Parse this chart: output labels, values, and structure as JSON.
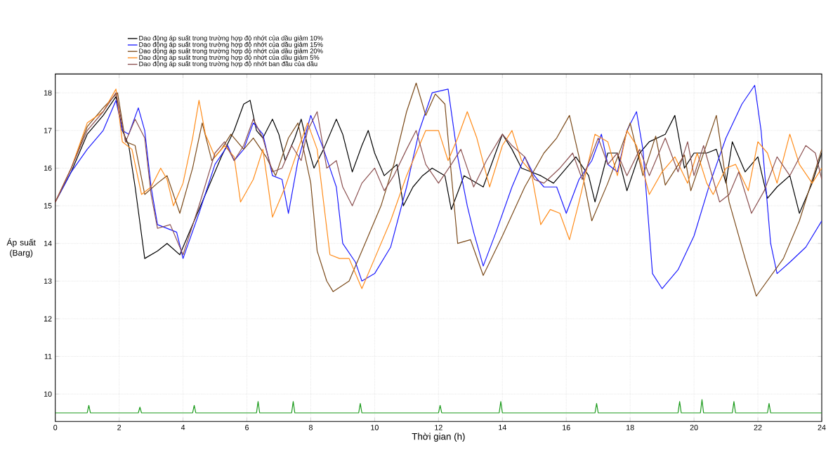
{
  "chart_data": {
    "type": "line",
    "xlabel": "Thời gian (h)",
    "ylabel": "Áp suất (Barg)",
    "xlim": [
      0,
      24
    ],
    "ylim": [
      9.27,
      18.5
    ],
    "xticks": [
      0,
      2,
      4,
      6,
      8,
      10,
      12,
      14,
      16,
      18,
      20,
      22,
      24
    ],
    "yticks": [
      10,
      11,
      12,
      13,
      14,
      15,
      16,
      17,
      18
    ],
    "grid": true,
    "legend": "top",
    "marker": "none",
    "line_style": "solid",
    "series": [
      {
        "name": "Dao động áp suất trong trường hợp độ nhớt của dầu giảm 10%",
        "color": "#000000",
        "x": [
          0,
          0.5,
          1,
          1.5,
          1.9,
          2.1,
          2.3,
          2.5,
          2.8,
          3.2,
          3.5,
          3.9,
          4.2,
          4.7,
          5.2,
          5.6,
          5.9,
          6.1,
          6.3,
          6.5,
          6.8,
          7,
          7.2,
          7.5,
          7.7,
          7.9,
          8.1,
          8.4,
          8.8,
          9,
          9.3,
          9.6,
          9.8,
          10,
          10.3,
          10.7,
          10.9,
          11.2,
          11.5,
          11.8,
          12.2,
          12.4,
          12.8,
          13,
          13.4,
          13.7,
          14,
          14.3,
          14.6,
          14.9,
          15.2,
          15.6,
          15.9,
          16.3,
          16.7,
          16.9,
          17.3,
          17.6,
          17.9,
          18.3,
          18.6,
          19.1,
          19.4,
          19.7,
          20,
          20.4,
          20.7,
          21,
          21.2,
          21.6,
          22,
          22.3,
          22.6,
          23,
          23.3,
          23.7,
          24
        ],
        "values": [
          15.1,
          15.9,
          16.9,
          17.4,
          17.9,
          17.0,
          16.6,
          15.5,
          13.6,
          13.8,
          14.0,
          13.7,
          14.3,
          15.3,
          16.3,
          17.0,
          17.7,
          17.8,
          17.0,
          16.8,
          17.3,
          16.9,
          16.2,
          16.8,
          17.3,
          16.6,
          16.0,
          16.5,
          17.3,
          16.9,
          15.9,
          16.6,
          17.0,
          16.4,
          15.8,
          16.1,
          15.0,
          15.5,
          15.8,
          16.0,
          15.8,
          14.9,
          15.8,
          15.7,
          15.5,
          16.2,
          16.9,
          16.5,
          16.0,
          15.9,
          15.8,
          15.6,
          15.9,
          16.3,
          15.8,
          15.1,
          16.4,
          16.4,
          15.4,
          16.4,
          16.7,
          16.9,
          17.4,
          16.0,
          16.4,
          16.4,
          16.5,
          15.6,
          16.7,
          15.9,
          16.3,
          15.2,
          15.5,
          15.8,
          14.8,
          15.6,
          16.4
        ]
      },
      {
        "name": "Dao động áp suất trong trường hợp độ nhớt của dầu giảm 15%",
        "color": "#1a1aff",
        "x": [
          0,
          0.5,
          1,
          1.5,
          1.9,
          2.1,
          2.3,
          2.6,
          2.8,
          3,
          3.2,
          3.5,
          3.8,
          4,
          4.5,
          5,
          5.4,
          5.6,
          5.9,
          6.2,
          6.5,
          6.8,
          7.1,
          7.3,
          7.6,
          8,
          8.4,
          8.8,
          9,
          9.4,
          9.6,
          10,
          10.5,
          11,
          11.4,
          11.8,
          12.3,
          12.6,
          12.9,
          13.1,
          13.4,
          13.8,
          14.3,
          14.7,
          15,
          15.3,
          15.7,
          16,
          16.4,
          16.8,
          17.1,
          17.3,
          17.6,
          17.9,
          18.2,
          18.4,
          18.7,
          19,
          19.5,
          20,
          20.5,
          21,
          21.5,
          21.9,
          22.1,
          22.4,
          22.6,
          23,
          23.5,
          24
        ],
        "values": [
          15.1,
          15.9,
          16.5,
          17.0,
          17.8,
          17.0,
          16.9,
          17.6,
          17.0,
          15.5,
          14.5,
          14.4,
          14.3,
          13.6,
          14.8,
          16.1,
          16.6,
          16.2,
          16.5,
          17.2,
          16.9,
          15.8,
          15.7,
          14.8,
          16.2,
          17.4,
          16.5,
          15.5,
          14.0,
          13.5,
          13.0,
          13.2,
          13.9,
          15.5,
          17.0,
          18.0,
          18.1,
          16.3,
          15.0,
          14.3,
          13.4,
          14.3,
          15.5,
          16.3,
          15.8,
          15.5,
          15.5,
          14.8,
          15.7,
          16.2,
          16.9,
          16.1,
          15.9,
          17.0,
          17.5,
          16.5,
          13.2,
          12.8,
          13.3,
          14.2,
          15.6,
          16.8,
          17.7,
          18.2,
          17.0,
          14.0,
          13.2,
          13.5,
          13.9,
          14.6
        ]
      },
      {
        "name": "Dao động áp suất trong trường hợp độ nhớt của dầu giảm 20%",
        "color": "#7b4a1a",
        "x": [
          0,
          0.5,
          1,
          1.5,
          1.95,
          2.2,
          2.5,
          2.8,
          3.2,
          3.5,
          3.9,
          4.3,
          4.6,
          4.9,
          5.2,
          5.5,
          5.9,
          6.2,
          6.6,
          6.9,
          7.3,
          7.6,
          7.9,
          8,
          8.2,
          8.5,
          8.7,
          9.2,
          9.7,
          10.2,
          10.6,
          11,
          11.3,
          11.6,
          11.9,
          12.2,
          12.6,
          13,
          13.4,
          14,
          14.7,
          15.3,
          15.7,
          16.1,
          16.4,
          16.8,
          17.3,
          17.7,
          18,
          18.4,
          18.8,
          19.1,
          19.7,
          19.9,
          20.7,
          21.1,
          21.6,
          21.95,
          22.8,
          23.3,
          24
        ],
        "values": [
          15.1,
          16.0,
          17.1,
          17.6,
          18.0,
          16.7,
          16.6,
          15.3,
          15.6,
          15.8,
          14.8,
          16.0,
          17.2,
          16.2,
          16.5,
          16.9,
          16.5,
          16.8,
          16.3,
          15.8,
          16.8,
          17.2,
          16.0,
          15.6,
          13.8,
          13.0,
          12.72,
          13.0,
          14.0,
          15.0,
          16.1,
          17.5,
          18.26,
          17.4,
          17.97,
          17.7,
          14.0,
          14.1,
          13.15,
          14.2,
          15.5,
          16.4,
          16.8,
          17.4,
          16.3,
          14.6,
          15.6,
          16.5,
          17.2,
          15.8,
          16.85,
          15.55,
          16.35,
          15.4,
          17.4,
          15.1,
          13.6,
          12.6,
          13.6,
          14.6,
          16.5
        ]
      },
      {
        "name": "Dao động áp suất trong trường hợp độ nhớt của dầu giảm 5%",
        "color": "#ff8c1a",
        "x": [
          0,
          0.5,
          1,
          1.5,
          1.9,
          2.1,
          2.4,
          2.7,
          3,
          3.3,
          3.5,
          3.7,
          4,
          4.3,
          4.5,
          4.7,
          5,
          5.3,
          5.6,
          5.8,
          6.2,
          6.5,
          6.8,
          7.2,
          7.6,
          7.9,
          8.2,
          8.6,
          8.9,
          9.2,
          9.6,
          10,
          10.5,
          11,
          11.3,
          11.6,
          12,
          12.3,
          12.6,
          12.9,
          13.2,
          13.6,
          14,
          14.3,
          14.6,
          14.9,
          15.2,
          15.5,
          15.8,
          16.1,
          16.4,
          16.9,
          17.3,
          17.6,
          17.9,
          18.2,
          18.6,
          19,
          19.4,
          19.8,
          20.1,
          20.4,
          20.6,
          21,
          21.3,
          21.7,
          22,
          22.3,
          22.6,
          23,
          23.3,
          23.7,
          24
        ],
        "values": [
          15.1,
          16.0,
          17.2,
          17.5,
          18.1,
          16.7,
          16.5,
          15.3,
          15.5,
          16.0,
          15.7,
          15.0,
          15.6,
          16.8,
          17.8,
          16.9,
          16.3,
          16.6,
          16.3,
          15.1,
          15.7,
          16.5,
          14.7,
          15.5,
          16.5,
          17.2,
          16.5,
          13.7,
          13.6,
          13.6,
          12.8,
          13.6,
          14.6,
          15.8,
          16.4,
          17.0,
          17.0,
          16.2,
          16.8,
          17.5,
          16.8,
          15.5,
          16.6,
          17.0,
          16.2,
          15.9,
          14.5,
          14.9,
          14.8,
          14.1,
          15.1,
          16.9,
          16.7,
          15.8,
          17.0,
          16.6,
          15.3,
          15.9,
          16.3,
          15.6,
          16.4,
          15.6,
          15.3,
          16.0,
          16.1,
          15.4,
          16.7,
          16.4,
          15.6,
          16.9,
          16.1,
          15.6,
          16.0
        ]
      },
      {
        "name": "Dao động áp suất trong trường hợp độ nhớt ban đầu của dầu",
        "color": "#8b5050",
        "x": [
          0,
          0.5,
          1,
          1.5,
          1.9,
          2.2,
          2.5,
          2.8,
          3,
          3.2,
          3.6,
          4,
          4.5,
          5,
          5.3,
          5.6,
          5.9,
          6.2,
          6.5,
          6.8,
          7.1,
          7.4,
          7.7,
          7.9,
          8.2,
          8.5,
          8.8,
          9,
          9.3,
          9.6,
          10,
          10.3,
          10.6,
          11,
          11.3,
          11.6,
          12,
          12.4,
          12.7,
          13.1,
          13.5,
          14,
          14.3,
          14.7,
          15,
          15.3,
          15.8,
          16.2,
          16.5,
          17,
          17.3,
          17.6,
          17.9,
          18.3,
          18.6,
          19.1,
          19.5,
          19.8,
          20,
          20.3,
          20.8,
          21.1,
          21.4,
          21.8,
          22.2,
          22.6,
          23,
          23.5,
          23.8,
          24
        ],
        "values": [
          15.1,
          16.0,
          17.0,
          17.5,
          18.0,
          16.7,
          17.3,
          16.8,
          15.3,
          14.4,
          14.5,
          13.7,
          15.0,
          16.4,
          16.7,
          16.2,
          16.6,
          17.3,
          16.8,
          15.9,
          16.0,
          16.6,
          16.2,
          17.0,
          17.5,
          16.0,
          16.2,
          15.5,
          15.0,
          15.6,
          16.0,
          15.4,
          15.8,
          16.5,
          17.0,
          16.1,
          15.6,
          16.1,
          16.5,
          15.5,
          16.2,
          16.9,
          16.6,
          16.3,
          15.7,
          15.6,
          16.0,
          16.4,
          15.7,
          16.8,
          16.1,
          16.4,
          15.8,
          16.5,
          15.8,
          16.8,
          15.9,
          16.7,
          15.8,
          16.6,
          15.1,
          15.3,
          15.9,
          14.8,
          15.4,
          16.3,
          15.8,
          16.6,
          16.4,
          15.7
        ]
      },
      {
        "color": "#1a9a1a",
        "x": [
          0,
          1,
          1.05,
          1.1,
          2.6,
          2.65,
          2.7,
          4.3,
          4.35,
          4.4,
          6.3,
          6.35,
          6.4,
          7.4,
          7.45,
          7.5,
          9.5,
          9.55,
          9.6,
          12.0,
          12.05,
          12.1,
          13.9,
          13.95,
          14.0,
          16.9,
          16.95,
          17.0,
          19.5,
          19.55,
          19.6,
          20.2,
          20.25,
          20.3,
          21.2,
          21.25,
          21.3,
          22.3,
          22.35,
          22.4,
          24
        ],
        "values": [
          9.5,
          9.5,
          9.7,
          9.5,
          9.5,
          9.65,
          9.5,
          9.5,
          9.7,
          9.5,
          9.5,
          9.8,
          9.5,
          9.5,
          9.8,
          9.5,
          9.5,
          9.75,
          9.5,
          9.5,
          9.7,
          9.5,
          9.5,
          9.8,
          9.5,
          9.5,
          9.75,
          9.5,
          9.5,
          9.8,
          9.5,
          9.5,
          9.85,
          9.5,
          9.5,
          9.8,
          9.5,
          9.5,
          9.75,
          9.5,
          9.5
        ]
      }
    ]
  }
}
